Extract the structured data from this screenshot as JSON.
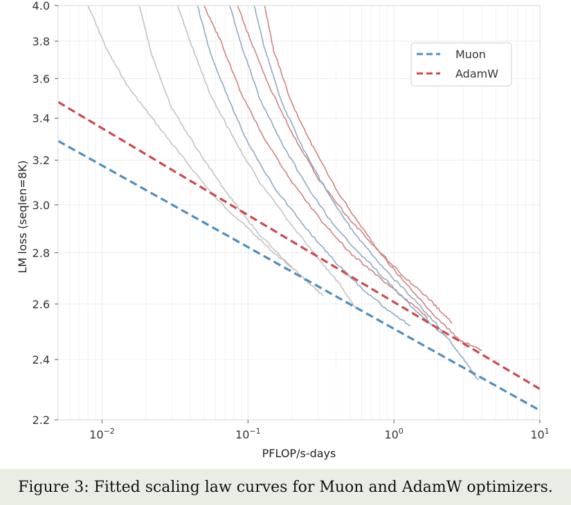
{
  "caption": "Figure 3: Fitted scaling law curves for Muon and AdamW optimizers.",
  "colors": {
    "muon": "#4c8dbf",
    "adamw": "#d0464a",
    "muon_curve": "#8ba9c4",
    "adamw_curve": "#cf8080",
    "gray_curve": "#c2c2c2",
    "grid": "#ececec"
  },
  "chart_data": {
    "type": "line",
    "title": "",
    "xlabel": "PFLOP/s-days",
    "ylabel": "LM loss (seqlen=8K)",
    "xscale": "log",
    "yscale": "log",
    "xlim": [
      0.005,
      10
    ],
    "ylim": [
      2.2,
      4.0
    ],
    "xticks": [
      {
        "value": 0.01,
        "base": "10",
        "exp": "−2"
      },
      {
        "value": 0.1,
        "base": "10",
        "exp": "−1"
      },
      {
        "value": 1,
        "base": "10",
        "exp": "0"
      },
      {
        "value": 10,
        "base": "10",
        "exp": "1"
      }
    ],
    "yticks": [
      {
        "value": 2.2,
        "label": "2.2"
      },
      {
        "value": 2.4,
        "label": "2.4"
      },
      {
        "value": 2.6,
        "label": "2.6"
      },
      {
        "value": 2.8,
        "label": "2.8"
      },
      {
        "value": 3.0,
        "label": "3.0"
      },
      {
        "value": 3.2,
        "label": "3.2"
      },
      {
        "value": 3.4,
        "label": "3.4"
      },
      {
        "value": 3.6,
        "label": "3.6"
      },
      {
        "value": 3.8,
        "label": "3.8"
      },
      {
        "value": 4.0,
        "label": "4.0"
      }
    ],
    "legend": {
      "position": "top-right",
      "entries": [
        {
          "label": "Muon",
          "series": "muon_fit"
        },
        {
          "label": "AdamW",
          "series": "adamw_fit"
        }
      ]
    },
    "fits": [
      {
        "name": "Muon",
        "id": "muon_fit",
        "style": "dashed",
        "x": [
          0.005,
          10
        ],
        "y": [
          3.29,
          2.23
        ]
      },
      {
        "name": "AdamW",
        "id": "adamw_fit",
        "style": "dashed",
        "x": [
          0.005,
          10
        ],
        "y": [
          3.48,
          2.3
        ]
      }
    ],
    "series": [
      {
        "name": "gray-1",
        "group": "gray",
        "x": [
          0.008,
          0.011,
          0.015,
          0.022,
          0.035,
          0.06,
          0.1,
          0.15,
          0.2
        ],
        "y": [
          4.0,
          3.74,
          3.56,
          3.4,
          3.22,
          3.03,
          2.9,
          2.8,
          2.74
        ]
      },
      {
        "name": "gray-2",
        "group": "gray",
        "x": [
          0.018,
          0.022,
          0.03,
          0.045,
          0.07,
          0.11,
          0.17,
          0.26,
          0.33
        ],
        "y": [
          4.0,
          3.72,
          3.45,
          3.25,
          3.06,
          2.9,
          2.78,
          2.68,
          2.63
        ]
      },
      {
        "name": "gray-3",
        "group": "gray",
        "x": [
          0.033,
          0.04,
          0.055,
          0.08,
          0.12,
          0.19,
          0.3,
          0.42,
          0.55
        ],
        "y": [
          4.0,
          3.8,
          3.52,
          3.3,
          3.1,
          2.93,
          2.78,
          2.68,
          2.58
        ]
      },
      {
        "name": "muon-1",
        "group": "muon",
        "x": [
          0.045,
          0.055,
          0.075,
          0.1,
          0.15,
          0.25,
          0.4,
          0.6,
          0.9,
          1.3
        ],
        "y": [
          4.0,
          3.74,
          3.48,
          3.28,
          3.08,
          2.9,
          2.76,
          2.66,
          2.58,
          2.52
        ]
      },
      {
        "name": "adamw-1",
        "group": "adamw",
        "x": [
          0.05,
          0.065,
          0.09,
          0.13,
          0.2,
          0.32,
          0.5,
          0.8,
          1.2,
          1.7
        ],
        "y": [
          4.0,
          3.8,
          3.52,
          3.3,
          3.1,
          2.93,
          2.8,
          2.7,
          2.62,
          2.55
        ]
      },
      {
        "name": "muon-2",
        "group": "muon",
        "x": [
          0.075,
          0.09,
          0.12,
          0.17,
          0.26,
          0.4,
          0.65,
          1.0,
          1.5,
          2.3
        ],
        "y": [
          4.0,
          3.78,
          3.5,
          3.28,
          3.07,
          2.9,
          2.77,
          2.66,
          2.56,
          2.48
        ]
      },
      {
        "name": "adamw-2",
        "group": "adamw",
        "x": [
          0.085,
          0.1,
          0.14,
          0.2,
          0.3,
          0.48,
          0.75,
          1.15,
          1.8,
          2.5
        ],
        "y": [
          4.0,
          3.84,
          3.56,
          3.33,
          3.12,
          2.95,
          2.82,
          2.71,
          2.61,
          2.53
        ]
      },
      {
        "name": "muon-3",
        "group": "muon",
        "x": [
          0.11,
          0.13,
          0.17,
          0.24,
          0.36,
          0.55,
          0.85,
          1.3,
          2.0,
          3.0,
          3.8
        ],
        "y": [
          4.0,
          3.76,
          3.48,
          3.25,
          3.04,
          2.87,
          2.74,
          2.63,
          2.52,
          2.4,
          2.33
        ]
      },
      {
        "name": "adamw-3",
        "group": "adamw",
        "x": [
          0.13,
          0.15,
          0.2,
          0.28,
          0.4,
          0.55,
          0.8,
          1.2,
          1.8,
          2.8,
          4.0
        ],
        "y": [
          4.0,
          3.75,
          3.47,
          3.26,
          3.07,
          2.94,
          2.8,
          2.68,
          2.57,
          2.47,
          2.43
        ]
      }
    ]
  }
}
